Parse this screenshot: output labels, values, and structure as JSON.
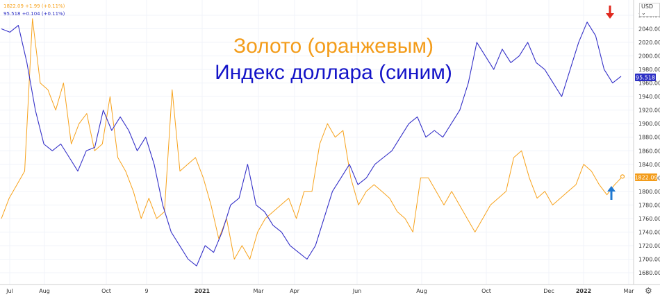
{
  "legend": {
    "gold": "1822.09 +1.99 (+0.11%)",
    "dxy": "95.518 +0.104 (+0.11%)"
  },
  "titles": {
    "gold": "Золото (оранжевым)",
    "dxy": "Индекс доллара (синим)"
  },
  "currency": "USD",
  "price_tags": {
    "dxy": "95.518",
    "gold": "1822.09"
  },
  "colors": {
    "gold": "#f7a21b",
    "dxy": "#3531c8",
    "red_arrow": "#e0281e",
    "blue_arrow": "#1f78d1"
  },
  "icons": [
    "settings-gear-icon",
    "down-arrow-icon",
    "up-arrow-icon"
  ],
  "chart_data": {
    "type": "line",
    "y_axis": {
      "ticks": [
        2060,
        2040,
        2020,
        2000,
        1980,
        1960,
        1940,
        1920,
        1900,
        1880,
        1860,
        1840,
        1820,
        1800,
        1780,
        1760,
        1740,
        1720,
        1700,
        1680
      ],
      "ylim": [
        1670,
        2075
      ]
    },
    "x_axis": {
      "labels": [
        {
          "label": "Jul",
          "bold": false
        },
        {
          "label": "Aug",
          "bold": false
        },
        {
          "label": "Oct",
          "bold": false
        },
        {
          "label": "9",
          "bold": false
        },
        {
          "label": "2021",
          "bold": true
        },
        {
          "label": "Mar",
          "bold": false
        },
        {
          "label": "Apr",
          "bold": false
        },
        {
          "label": "Jun",
          "bold": false
        },
        {
          "label": "Aug",
          "bold": false
        },
        {
          "label": "Oct",
          "bold": false
        },
        {
          "label": "Dec",
          "bold": false
        },
        {
          "label": "2022",
          "bold": true
        },
        {
          "label": "Mar",
          "bold": false
        }
      ]
    },
    "series": [
      {
        "name": "Золото",
        "values": [
          1760,
          1790,
          1810,
          1830,
          2055,
          1960,
          1950,
          1920,
          1960,
          1870,
          1900,
          1915,
          1860,
          1870,
          1940,
          1850,
          1830,
          1800,
          1760,
          1790,
          1760,
          1770,
          1950,
          1830,
          1840,
          1850,
          1820,
          1780,
          1730,
          1760,
          1700,
          1720,
          1700,
          1740,
          1760,
          1770,
          1780,
          1790,
          1760,
          1800,
          1800,
          1870,
          1900,
          1880,
          1890,
          1820,
          1780,
          1800,
          1810,
          1800,
          1790,
          1770,
          1760,
          1740,
          1820,
          1820,
          1800,
          1780,
          1800,
          1780,
          1760,
          1740,
          1760,
          1780,
          1790,
          1800,
          1850,
          1860,
          1820,
          1790,
          1800,
          1780,
          1790,
          1800,
          1810,
          1840,
          1830,
          1810,
          1795,
          1810,
          1822
        ]
      },
      {
        "name": "Индекс доллара",
        "values": [
          2040,
          2035,
          2045,
          1990,
          1920,
          1870,
          1860,
          1870,
          1850,
          1830,
          1860,
          1865,
          1920,
          1890,
          1910,
          1890,
          1860,
          1880,
          1840,
          1780,
          1740,
          1720,
          1700,
          1690,
          1720,
          1710,
          1740,
          1780,
          1790,
          1840,
          1780,
          1770,
          1750,
          1740,
          1720,
          1710,
          1700,
          1720,
          1760,
          1800,
          1820,
          1840,
          1810,
          1820,
          1840,
          1850,
          1860,
          1880,
          1900,
          1910,
          1880,
          1890,
          1880,
          1900,
          1920,
          1960,
          2020,
          2000,
          1980,
          2010,
          1990,
          2000,
          2020,
          1990,
          1980,
          1960,
          1940,
          1980,
          2020,
          2050,
          2030,
          1980,
          1960,
          1970
        ]
      }
    ]
  }
}
